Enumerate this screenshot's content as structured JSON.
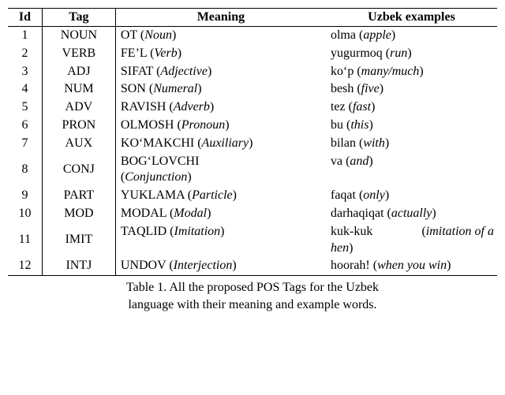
{
  "caption_line1": "Table 1. All the proposed POS Tags for the Uzbek",
  "caption_line2": "language with their meaning and example words.",
  "headers": {
    "id": "Id",
    "tag": "Tag",
    "meaning": "Meaning",
    "examples": "Uzbek examples"
  },
  "rows": [
    {
      "id": "1",
      "tag": "NOUN",
      "mean_uz": "OT",
      "mean_en": "Noun",
      "ex_uz": "olma",
      "ex_en": "apple"
    },
    {
      "id": "2",
      "tag": "VERB",
      "mean_uz": "FE’L",
      "mean_en": "Verb",
      "ex_uz": "yugurmoq",
      "ex_en": "run"
    },
    {
      "id": "3",
      "tag": "ADJ",
      "mean_uz": "SIFAT",
      "mean_en": "Adjective",
      "ex_uz": "ko‘p",
      "ex_en": "many/much"
    },
    {
      "id": "4",
      "tag": "NUM",
      "mean_uz": "SON",
      "mean_en": "Numeral",
      "ex_uz": "besh",
      "ex_en": "five"
    },
    {
      "id": "5",
      "tag": "ADV",
      "mean_uz": "RAVISH",
      "mean_en": "Adverb",
      "ex_uz": "tez",
      "ex_en": "fast"
    },
    {
      "id": "6",
      "tag": "PRON",
      "mean_uz": "OLMOSH",
      "mean_en": "Pronoun",
      "ex_uz": "bu",
      "ex_en": "this"
    },
    {
      "id": "7",
      "tag": "AUX",
      "mean_uz": "KO‘MAKCHI",
      "mean_en": "Auxiliary",
      "ex_uz": "bilan",
      "ex_en": "with"
    },
    {
      "id": "8",
      "tag": "CONJ",
      "mean_uz": "BOG‘LOVCHI",
      "mean_en": "Conjunction",
      "ex_uz": "va",
      "ex_en": "and"
    },
    {
      "id": "9",
      "tag": "PART",
      "mean_uz": "YUKLAMA",
      "mean_en": "Particle",
      "ex_uz": "faqat",
      "ex_en": "only"
    },
    {
      "id": "10",
      "tag": "MOD",
      "mean_uz": "MODAL",
      "mean_en": "Modal",
      "ex_uz": "darhaqiqat",
      "ex_en": "actually"
    },
    {
      "id": "11",
      "tag": "IMIT",
      "mean_uz": "TAQLID",
      "mean_en": "Imitation",
      "ex_uz": "kuk-kuk",
      "ex_en_pre": "imitation of a",
      "ex_en_post": "hen"
    },
    {
      "id": "12",
      "tag": "INTJ",
      "mean_uz": "UNDOV",
      "mean_en": "Interjection",
      "ex_uz": "hoorah!",
      "ex_en": "when you win"
    }
  ]
}
